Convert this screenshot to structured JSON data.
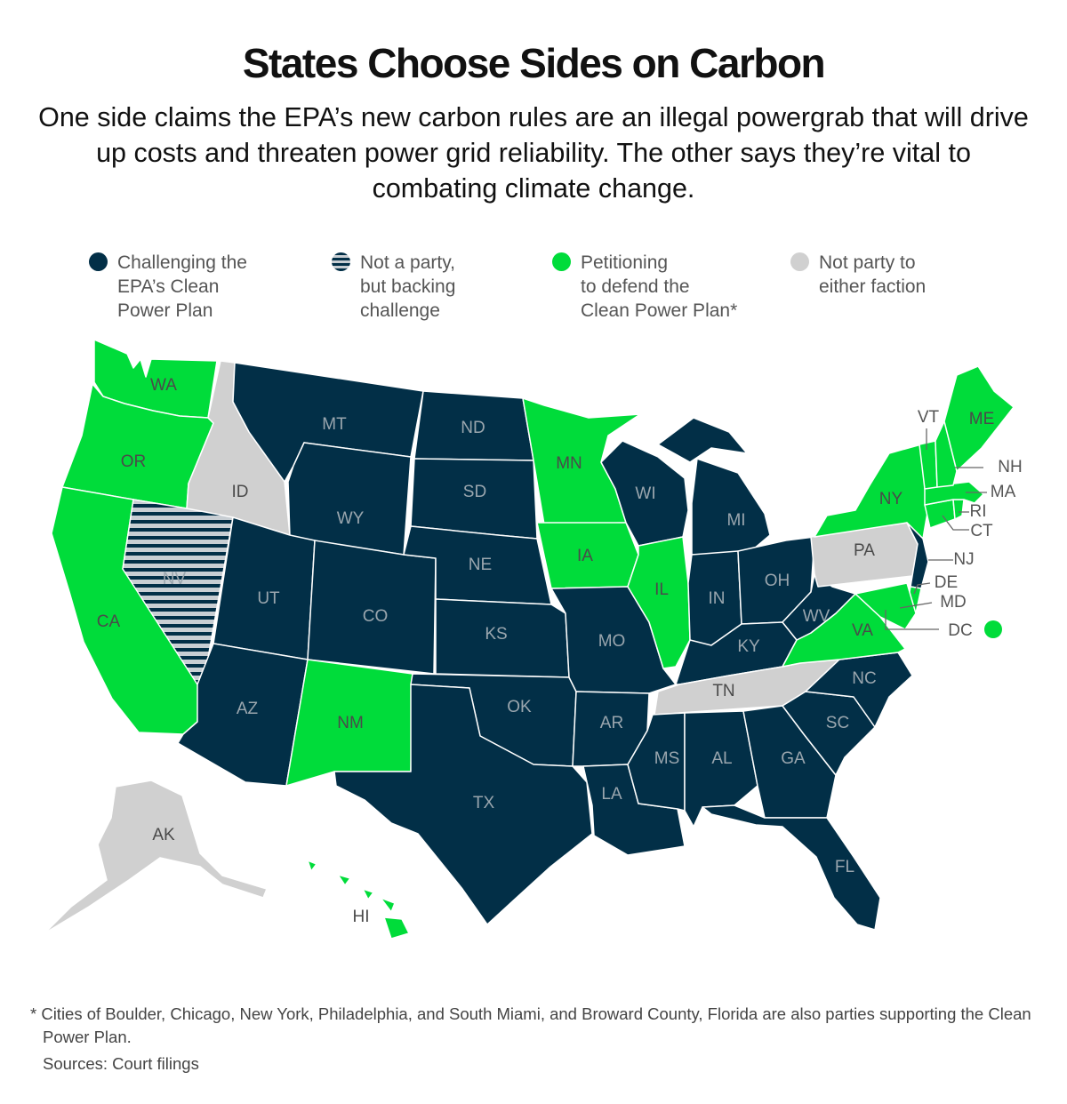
{
  "title": "States Choose Sides on Carbon",
  "subtitle": "One side claims the EPA’s new carbon rules are an illegal powergrab that will drive up costs and threaten power grid reliability. The other says they’re vital to combating climate change.",
  "colors": {
    "challenging": "#022f47",
    "backing": "#022f47",
    "backing_stripe": "#c8ced3",
    "defending": "#00dc3a",
    "neither": "#d0d0d0",
    "border": "#ffffff",
    "label_on_dark": "#9aa6ae",
    "label_on_light": "#4a4a4a",
    "leader_text": "#555555"
  },
  "legend": [
    {
      "key": "challenging",
      "label": "Challenging the\nEPA’s Clean\nPower Plan"
    },
    {
      "key": "backing",
      "label": "Not a party,\nbut backing\nchallenge"
    },
    {
      "key": "defending",
      "label": "Petitioning\nto defend the\nClean Power Plan*"
    },
    {
      "key": "neither",
      "label": "Not party to\neither faction"
    }
  ],
  "states": [
    {
      "abbr": "WA",
      "status": "defending"
    },
    {
      "abbr": "OR",
      "status": "defending"
    },
    {
      "abbr": "CA",
      "status": "defending"
    },
    {
      "abbr": "ID",
      "status": "neither"
    },
    {
      "abbr": "NV",
      "status": "backing"
    },
    {
      "abbr": "MT",
      "status": "challenging"
    },
    {
      "abbr": "WY",
      "status": "challenging"
    },
    {
      "abbr": "UT",
      "status": "challenging"
    },
    {
      "abbr": "AZ",
      "status": "challenging"
    },
    {
      "abbr": "CO",
      "status": "challenging"
    },
    {
      "abbr": "NM",
      "status": "defending"
    },
    {
      "abbr": "ND",
      "status": "challenging"
    },
    {
      "abbr": "SD",
      "status": "challenging"
    },
    {
      "abbr": "NE",
      "status": "challenging"
    },
    {
      "abbr": "KS",
      "status": "challenging"
    },
    {
      "abbr": "OK",
      "status": "challenging"
    },
    {
      "abbr": "TX",
      "status": "challenging"
    },
    {
      "abbr": "MN",
      "status": "defending"
    },
    {
      "abbr": "IA",
      "status": "defending"
    },
    {
      "abbr": "MO",
      "status": "challenging"
    },
    {
      "abbr": "AR",
      "status": "challenging"
    },
    {
      "abbr": "LA",
      "status": "challenging"
    },
    {
      "abbr": "WI",
      "status": "challenging"
    },
    {
      "abbr": "IL",
      "status": "defending"
    },
    {
      "abbr": "MI",
      "status": "challenging"
    },
    {
      "abbr": "IN",
      "status": "challenging"
    },
    {
      "abbr": "OH",
      "status": "challenging"
    },
    {
      "abbr": "KY",
      "status": "challenging"
    },
    {
      "abbr": "TN",
      "status": "neither"
    },
    {
      "abbr": "MS",
      "status": "challenging"
    },
    {
      "abbr": "AL",
      "status": "challenging"
    },
    {
      "abbr": "GA",
      "status": "challenging"
    },
    {
      "abbr": "FL",
      "status": "challenging"
    },
    {
      "abbr": "SC",
      "status": "challenging"
    },
    {
      "abbr": "NC",
      "status": "challenging"
    },
    {
      "abbr": "VA",
      "status": "defending"
    },
    {
      "abbr": "WV",
      "status": "challenging"
    },
    {
      "abbr": "PA",
      "status": "neither"
    },
    {
      "abbr": "NY",
      "status": "defending"
    },
    {
      "abbr": "NJ",
      "status": "challenging"
    },
    {
      "abbr": "DE",
      "status": "defending"
    },
    {
      "abbr": "MD",
      "status": "defending"
    },
    {
      "abbr": "DC",
      "status": "defending"
    },
    {
      "abbr": "CT",
      "status": "defending"
    },
    {
      "abbr": "RI",
      "status": "defending"
    },
    {
      "abbr": "MA",
      "status": "defending"
    },
    {
      "abbr": "VT",
      "status": "defending"
    },
    {
      "abbr": "NH",
      "status": "defending"
    },
    {
      "abbr": "ME",
      "status": "defending"
    },
    {
      "abbr": "AK",
      "status": "neither"
    },
    {
      "abbr": "HI",
      "status": "defending"
    }
  ],
  "footnote": "* Cities of Boulder, Chicago, New York, Philadelphia, and South Miami, and Broward County, Florida are also parties supporting the Clean Power Plan.",
  "sources": "Sources: Court filings"
}
